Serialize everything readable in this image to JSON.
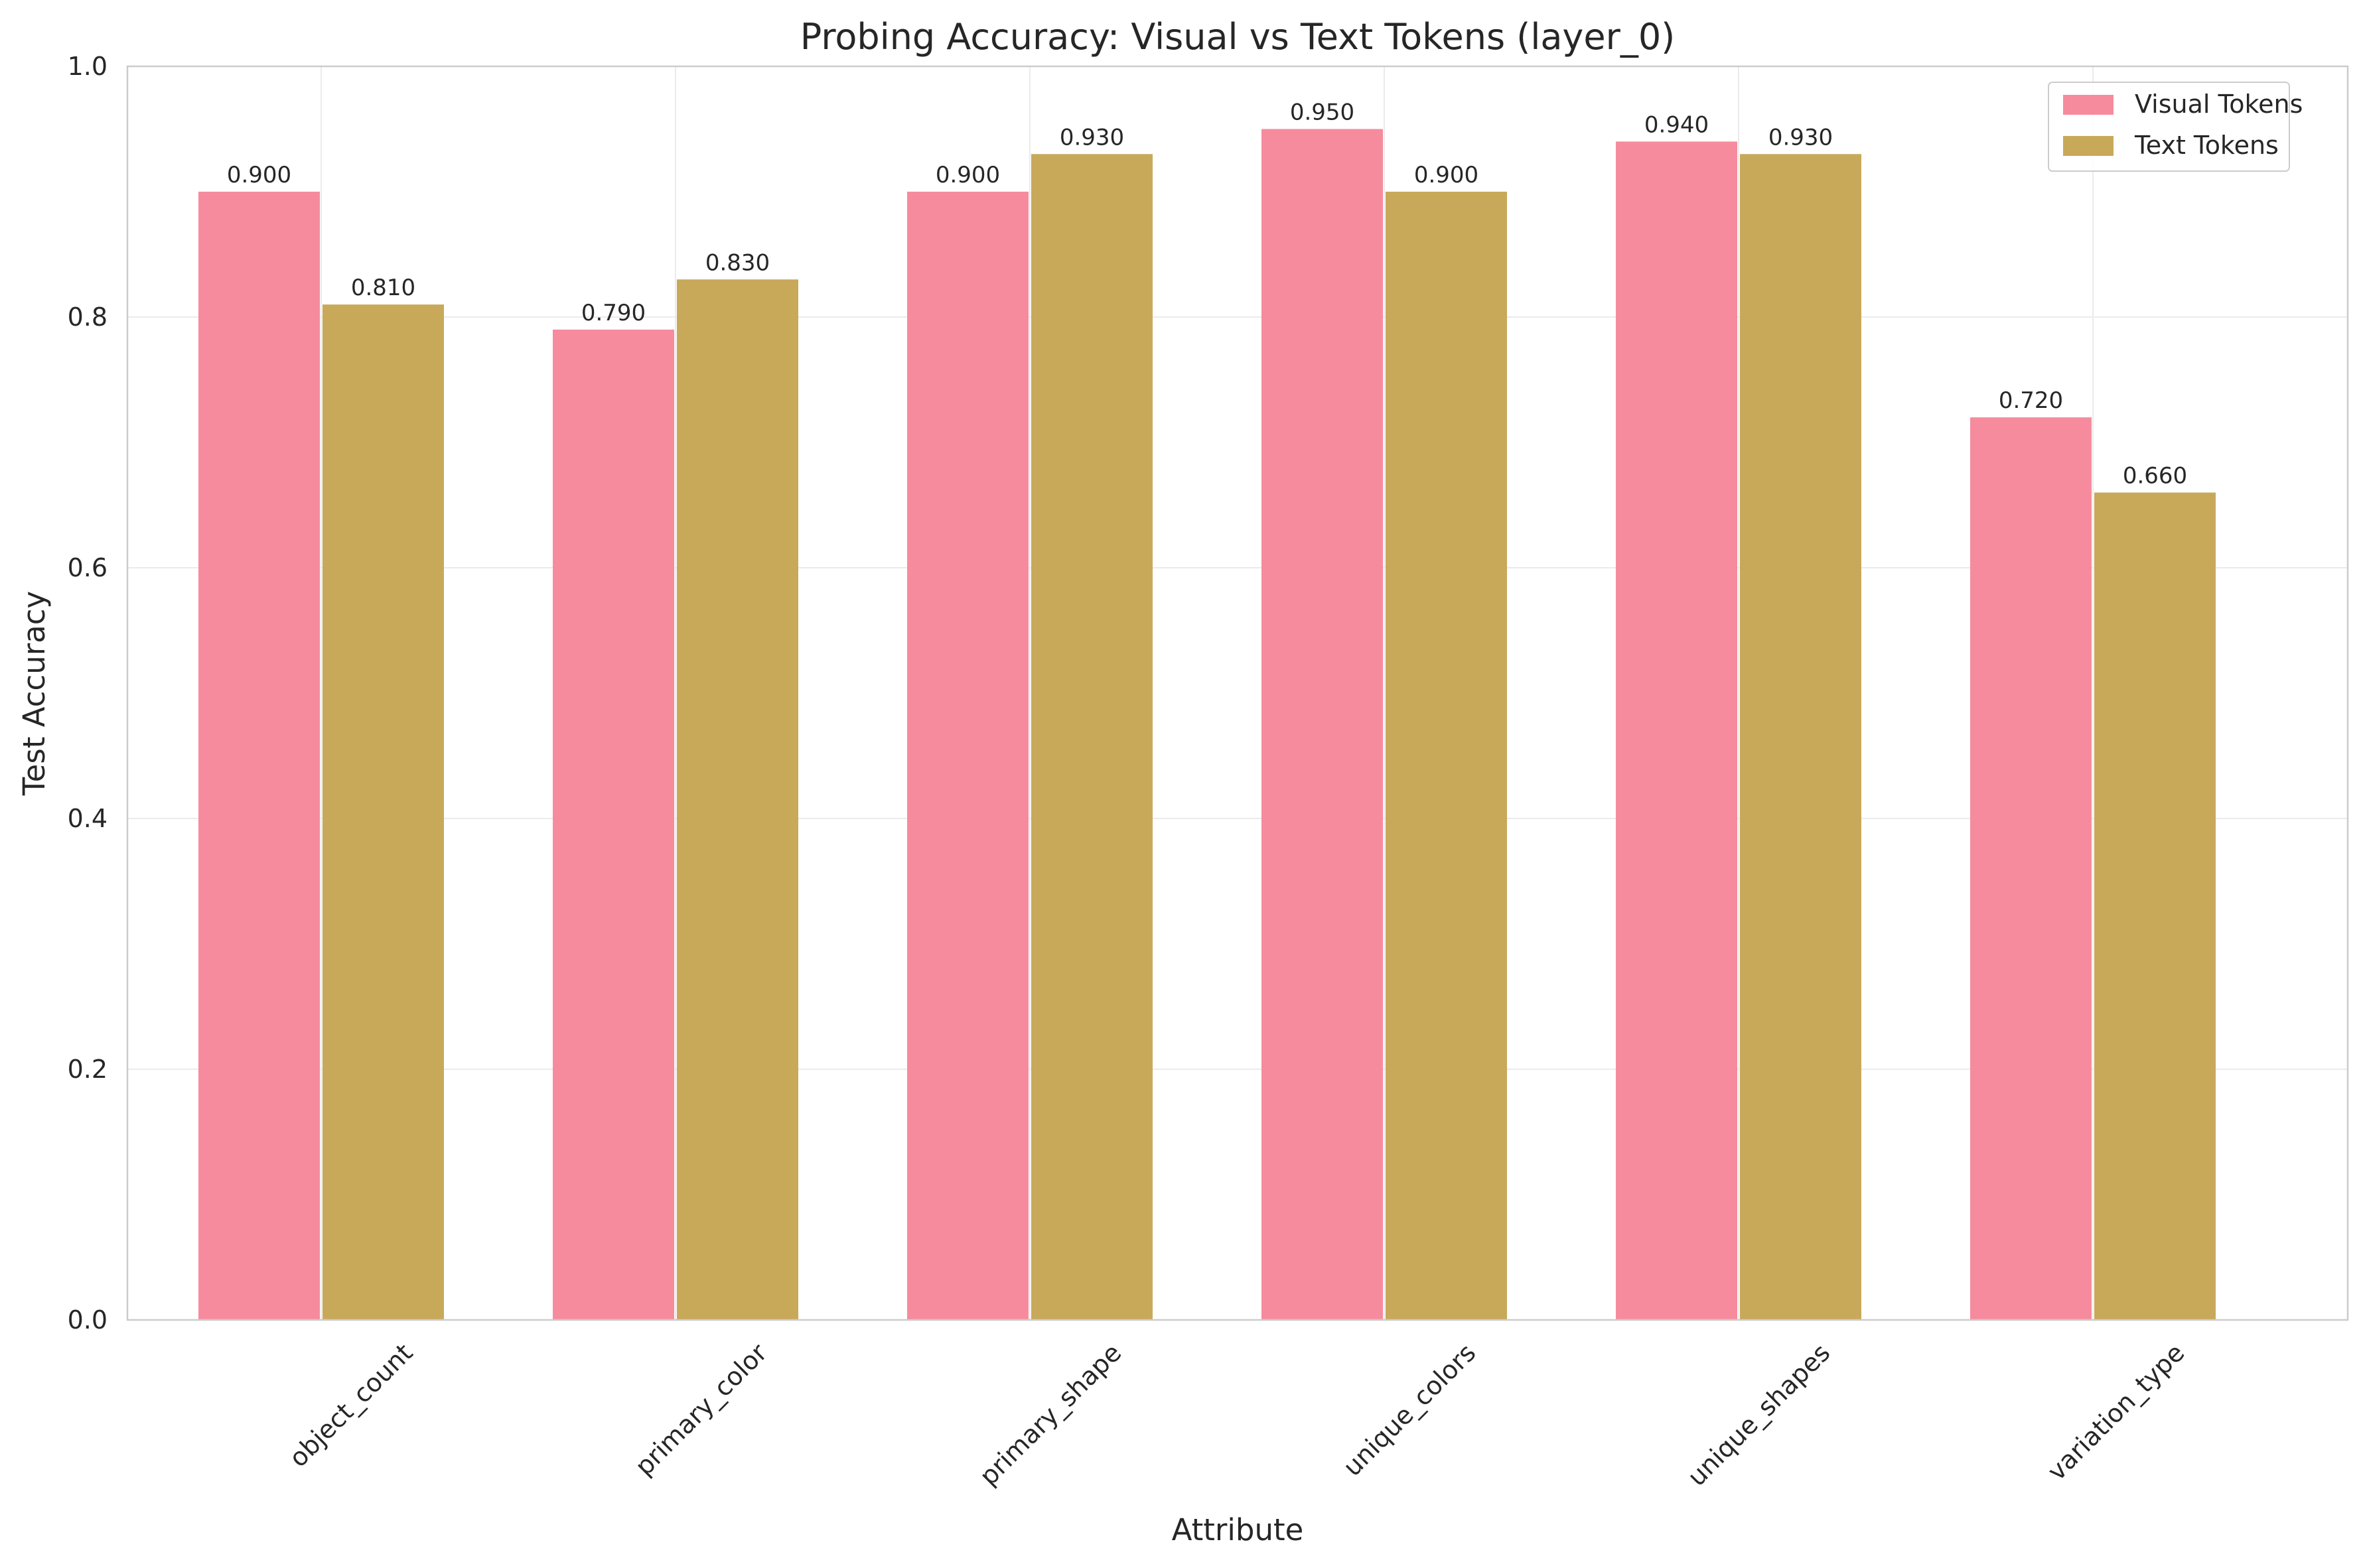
{
  "chart_data": {
    "type": "bar",
    "title": "Probing Accuracy: Visual vs Text Tokens (layer_0)",
    "xlabel": "Attribute",
    "ylabel": "Test Accuracy",
    "categories": [
      "object_count",
      "primary_color",
      "primary_shape",
      "unique_colors",
      "unique_shapes",
      "variation_type"
    ],
    "series": [
      {
        "name": "Visual Tokens",
        "color": "#f68b9e",
        "values": [
          0.9,
          0.79,
          0.9,
          0.95,
          0.94,
          0.72
        ],
        "labels": [
          "0.900",
          "0.790",
          "0.900",
          "0.950",
          "0.940",
          "0.720"
        ]
      },
      {
        "name": "Text Tokens",
        "color": "#c8a95a",
        "values": [
          0.81,
          0.83,
          0.93,
          0.9,
          0.93,
          0.66
        ],
        "labels": [
          "0.810",
          "0.830",
          "0.930",
          "0.900",
          "0.930",
          "0.660"
        ]
      }
    ],
    "ylim": [
      0,
      1.0
    ],
    "yticks": [
      0.0,
      0.2,
      0.4,
      0.6,
      0.8,
      1.0
    ],
    "ytick_labels": [
      "0.0",
      "0.2",
      "0.4",
      "0.6",
      "0.8",
      "1.0"
    ],
    "grid": true,
    "legend_position": "top-right"
  }
}
